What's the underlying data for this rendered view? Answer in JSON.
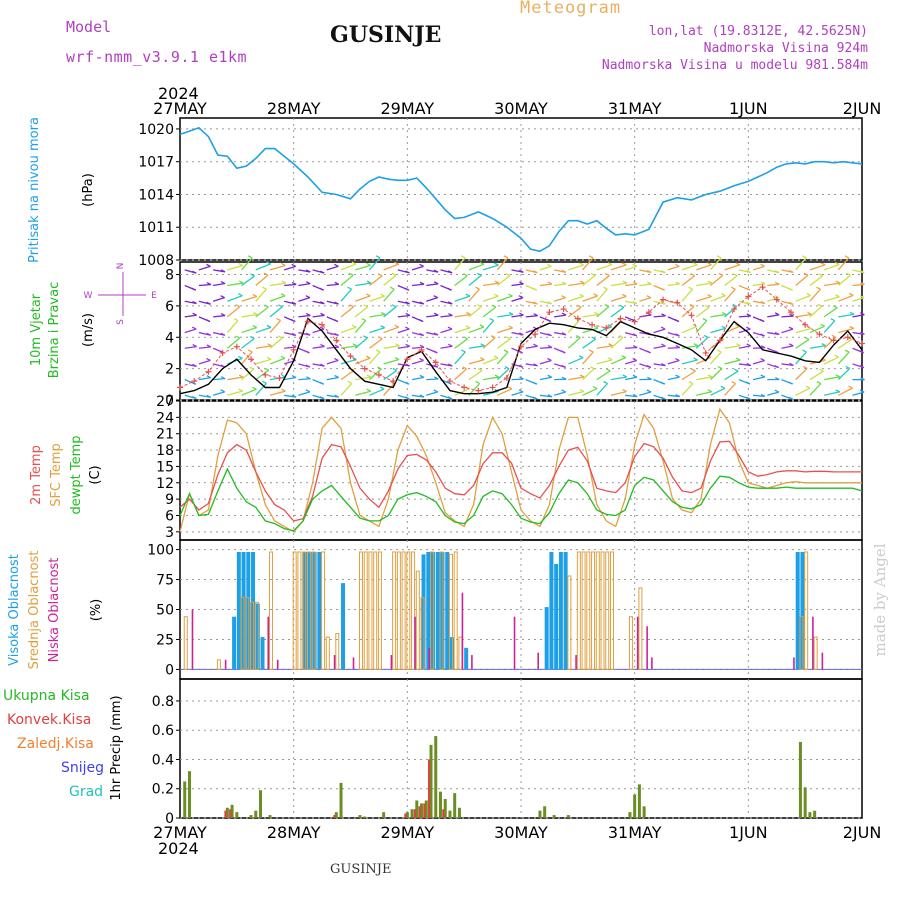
{
  "header": {
    "model_label": "Model",
    "model_name": "wrf-nmm_v3.9.1 e1km",
    "station": "GUSINJE",
    "product": "Meteogram",
    "coords": "lon,lat (19.8312E, 42.5625N)",
    "elevation": "Nadmorska Visina 924m",
    "model_elevation": "Nadmorska Visina u modelu 981.584m",
    "footer_station": "GUSINJE",
    "watermark": "made by Angel"
  },
  "colors": {
    "pressure": "#1ea0e6",
    "wind_label": "#22bb22",
    "temp2m": "#e85050",
    "sfc": "#e0a040",
    "dewpt": "#22bb22",
    "cloud_high": "#1ea0e6",
    "cloud_mid": "#e0a040",
    "cloud_low": "#cc2299",
    "rain_total": "#6b8e23",
    "purple": "#b040c0"
  },
  "chart_data": {
    "type": "line",
    "x_axis": {
      "year": "2024",
      "ticks": [
        "27MAY",
        "28MAY",
        "29MAY",
        "30MAY",
        "31MAY",
        "1JUN",
        "2JUN"
      ],
      "hours": 144,
      "grid": true
    },
    "pressure": {
      "ylabel": "Pritisak na nivou mora",
      "unit": "(hPa)",
      "ylim": [
        1008,
        1021
      ],
      "yticks": [
        1008,
        1011,
        1014,
        1017,
        1020
      ],
      "x": [
        0,
        2,
        4,
        6,
        8,
        10,
        12,
        14,
        16,
        18,
        20,
        22,
        24,
        27,
        30,
        33,
        36,
        38,
        40,
        42,
        44,
        46,
        48,
        50,
        52,
        54,
        56,
        58,
        60,
        63,
        66,
        69,
        72,
        74,
        76,
        78,
        80,
        82,
        84,
        86,
        88,
        90,
        92,
        94,
        96,
        99,
        102,
        105,
        108,
        111,
        114,
        117,
        120,
        122,
        124,
        126,
        128,
        130,
        132,
        134,
        136,
        138,
        140,
        142,
        144
      ],
      "values": [
        1019.5,
        1019.8,
        1020.1,
        1019.3,
        1017.6,
        1017.5,
        1016.4,
        1016.6,
        1017.3,
        1018.2,
        1018.2,
        1017.5,
        1016.8,
        1015.6,
        1014.2,
        1014.0,
        1013.6,
        1014.5,
        1015.2,
        1015.6,
        1015.4,
        1015.3,
        1015.3,
        1015.5,
        1014.6,
        1013.6,
        1012.6,
        1011.8,
        1011.9,
        1012.4,
        1011.8,
        1011.0,
        1010.0,
        1009.0,
        1008.8,
        1009.3,
        1010.6,
        1011.6,
        1011.6,
        1011.3,
        1011.6,
        1010.9,
        1010.3,
        1010.4,
        1010.3,
        1010.8,
        1013.3,
        1013.7,
        1013.5,
        1014.0,
        1014.3,
        1014.8,
        1015.2,
        1015.6,
        1016.0,
        1016.5,
        1016.8,
        1016.9,
        1016.8,
        1017.0,
        1017.0,
        1016.9,
        1017.0,
        1016.9,
        1016.8
      ]
    },
    "wind": {
      "ylabel_1": "10m Vjetar",
      "ylabel_2": "Brzina i Pravac",
      "unit": "(m/s)",
      "compass_top": "N",
      "compass_left": "W",
      "compass_right": "E",
      "compass_bottom": "S",
      "ylim": [
        0,
        8.8
      ],
      "yticks": [
        0,
        2,
        4,
        6,
        8
      ],
      "x": [
        0,
        3,
        6,
        9,
        12,
        15,
        18,
        21,
        24,
        27,
        30,
        33,
        36,
        39,
        42,
        45,
        48,
        51,
        54,
        57,
        60,
        63,
        66,
        69,
        72,
        75,
        78,
        81,
        84,
        87,
        90,
        93,
        96,
        99,
        102,
        105,
        108,
        111,
        114,
        117,
        120,
        123,
        126,
        129,
        132,
        135,
        138,
        141,
        144
      ],
      "speed": [
        0.4,
        0.6,
        1.0,
        2.0,
        2.6,
        1.6,
        0.8,
        0.8,
        2.5,
        5.2,
        4.4,
        3.2,
        2.0,
        1.2,
        1.0,
        0.8,
        2.7,
        3.1,
        1.8,
        0.6,
        0.4,
        0.4,
        0.5,
        0.8,
        3.6,
        4.5,
        4.9,
        4.8,
        4.6,
        4.5,
        4.1,
        5.0,
        4.6,
        4.2,
        4.0,
        3.6,
        3.2,
        2.5,
        3.8,
        5.0,
        4.3,
        3.2,
        3.0,
        2.8,
        2.5,
        2.4,
        3.5,
        4.4,
        3.2
      ],
      "gust": [
        0.8,
        1.2,
        1.8,
        3.0,
        3.4,
        2.6,
        1.6,
        1.4,
        3.2,
        5.0,
        4.8,
        3.8,
        2.8,
        2.0,
        1.6,
        1.2,
        2.6,
        3.2,
        2.4,
        1.2,
        0.8,
        0.6,
        0.8,
        1.4,
        3.4,
        4.2,
        5.6,
        5.8,
        5.2,
        4.8,
        4.6,
        5.2,
        5.0,
        5.6,
        6.4,
        6.2,
        5.4,
        3.0,
        3.8,
        5.8,
        6.6,
        7.2,
        6.4,
        5.6,
        4.8,
        4.2,
        3.8,
        4.0,
        3.6
      ]
    },
    "temperature": {
      "ylabel_2m": "2m Temp",
      "ylabel_sfc": "SFC Temp",
      "ylabel_dewpt": "dewpt Temp",
      "unit": "(C)",
      "ylim": [
        1.5,
        27
      ],
      "yticks": [
        3,
        6,
        9,
        12,
        15,
        18,
        21,
        24,
        27
      ],
      "x": [
        0,
        2,
        4,
        6,
        8,
        10,
        12,
        14,
        16,
        18,
        20,
        22,
        24,
        26,
        28,
        30,
        32,
        34,
        36,
        38,
        40,
        42,
        44,
        46,
        48,
        50,
        52,
        54,
        56,
        58,
        60,
        62,
        64,
        66,
        68,
        70,
        72,
        74,
        76,
        78,
        80,
        82,
        84,
        86,
        88,
        90,
        92,
        94,
        96,
        98,
        100,
        102,
        104,
        106,
        108,
        110,
        112,
        114,
        116,
        118,
        120,
        122,
        124,
        126,
        128,
        130,
        132,
        134,
        136,
        138,
        140,
        142,
        144
      ],
      "t2m": [
        7.5,
        9.0,
        7.0,
        8.2,
        13.5,
        17.5,
        19.0,
        18.0,
        14.0,
        10.5,
        8.0,
        7.0,
        5.0,
        5.4,
        9.5,
        16.5,
        19.0,
        18.6,
        15.0,
        11.0,
        9.0,
        7.5,
        10.5,
        14.5,
        17.0,
        17.2,
        16.2,
        14.0,
        11.0,
        10.0,
        9.8,
        11.5,
        15.5,
        17.5,
        17.5,
        15.6,
        11.0,
        10.0,
        9.2,
        11.5,
        15.0,
        18.0,
        18.5,
        16.0,
        11.0,
        10.5,
        10.2,
        12.0,
        16.8,
        19.2,
        18.6,
        16.5,
        13.0,
        10.5,
        10.2,
        11.0,
        16.0,
        19.5,
        19.6,
        17.0,
        14.0,
        13.2,
        13.5,
        14.0,
        14.2,
        14.2,
        14.0,
        14.1,
        14.1,
        14.0,
        14.0,
        14.0,
        14.0
      ],
      "sfc": [
        3.0,
        10.0,
        6.0,
        7.0,
        17.0,
        23.5,
        23.0,
        21.0,
        14.0,
        8.0,
        5.0,
        4.0,
        3.0,
        5.0,
        12.0,
        22.0,
        24.0,
        22.0,
        12.0,
        6.0,
        5.0,
        4.0,
        9.0,
        18.0,
        22.5,
        20.5,
        17.0,
        12.0,
        6.5,
        5.0,
        4.0,
        8.0,
        19.0,
        24.0,
        21.0,
        14.0,
        7.0,
        5.0,
        4.0,
        8.0,
        18.0,
        24.0,
        24.0,
        17.0,
        8.0,
        5.0,
        4.0,
        9.0,
        19.0,
        24.5,
        22.0,
        16.0,
        9.0,
        7.0,
        6.5,
        9.0,
        19.0,
        25.5,
        23.0,
        16.0,
        12.0,
        11.5,
        11.0,
        11.5,
        12.0,
        12.2,
        12.0,
        12.0,
        12.0,
        12.0,
        12.0,
        12.0,
        12.0
      ],
      "dewpt": [
        6.0,
        10.0,
        6.0,
        6.2,
        10.5,
        14.5,
        11.0,
        8.5,
        7.5,
        5.0,
        4.5,
        3.6,
        3.2,
        5.0,
        9.0,
        10.5,
        11.5,
        9.5,
        7.5,
        5.5,
        5.0,
        5.0,
        6.0,
        9.0,
        9.8,
        10.2,
        9.5,
        8.5,
        6.0,
        4.8,
        4.5,
        6.0,
        9.5,
        10.5,
        10.0,
        8.0,
        5.5,
        4.8,
        4.5,
        6.5,
        10.0,
        12.5,
        12.0,
        10.0,
        7.0,
        6.2,
        6.0,
        7.0,
        11.5,
        13.0,
        12.5,
        10.5,
        8.5,
        7.5,
        7.2,
        8.0,
        11.0,
        13.2,
        13.0,
        12.0,
        11.2,
        11.0,
        11.0,
        11.0,
        11.2,
        11.0,
        11.0,
        11.0,
        11.0,
        11.0,
        11.0,
        11.0,
        10.5
      ]
    },
    "clouds": {
      "ylabel_high": "Visoka Oblacnost",
      "ylabel_mid": "Srednja Oblacnost",
      "ylabel_low": "Niska Oblacnost",
      "unit": "(%)",
      "ylim": [
        0,
        100
      ],
      "yticks": [
        0,
        25,
        50,
        75,
        100
      ],
      "high": [
        {
          "h": 11,
          "v": 44
        },
        {
          "h": 12,
          "v": 98
        },
        {
          "h": 13,
          "v": 98
        },
        {
          "h": 14,
          "v": 98
        },
        {
          "h": 15,
          "v": 98
        },
        {
          "h": 16,
          "v": 55
        },
        {
          "h": 17,
          "v": 27
        },
        {
          "h": 26,
          "v": 98
        },
        {
          "h": 27,
          "v": 98
        },
        {
          "h": 28,
          "v": 98
        },
        {
          "h": 29,
          "v": 98
        },
        {
          "h": 34,
          "v": 72
        },
        {
          "h": 51,
          "v": 96
        },
        {
          "h": 52,
          "v": 98
        },
        {
          "h": 53,
          "v": 98
        },
        {
          "h": 54,
          "v": 98
        },
        {
          "h": 55,
          "v": 98
        },
        {
          "h": 56,
          "v": 98
        },
        {
          "h": 57,
          "v": 27
        },
        {
          "h": 60,
          "v": 18
        },
        {
          "h": 77,
          "v": 52
        },
        {
          "h": 78,
          "v": 98
        },
        {
          "h": 79,
          "v": 88
        },
        {
          "h": 80,
          "v": 98
        },
        {
          "h": 81,
          "v": 98
        },
        {
          "h": 130,
          "v": 98
        },
        {
          "h": 131,
          "v": 98
        }
      ],
      "mid": [
        {
          "h": 1,
          "v": 44
        },
        {
          "h": 8,
          "v": 8
        },
        {
          "h": 13,
          "v": 60
        },
        {
          "h": 14,
          "v": 60
        },
        {
          "h": 15,
          "v": 56
        },
        {
          "h": 16,
          "v": 56
        },
        {
          "h": 19,
          "v": 98
        },
        {
          "h": 24,
          "v": 98
        },
        {
          "h": 25,
          "v": 98
        },
        {
          "h": 26,
          "v": 98
        },
        {
          "h": 27,
          "v": 98
        },
        {
          "h": 28,
          "v": 98
        },
        {
          "h": 30,
          "v": 98
        },
        {
          "h": 31,
          "v": 27
        },
        {
          "h": 33,
          "v": 30
        },
        {
          "h": 38,
          "v": 98
        },
        {
          "h": 39,
          "v": 98
        },
        {
          "h": 40,
          "v": 98
        },
        {
          "h": 41,
          "v": 98
        },
        {
          "h": 42,
          "v": 98
        },
        {
          "h": 45,
          "v": 98
        },
        {
          "h": 46,
          "v": 98
        },
        {
          "h": 47,
          "v": 98
        },
        {
          "h": 48,
          "v": 98
        },
        {
          "h": 49,
          "v": 98
        },
        {
          "h": 50,
          "v": 82
        },
        {
          "h": 51,
          "v": 60
        },
        {
          "h": 53,
          "v": 98
        },
        {
          "h": 55,
          "v": 98
        },
        {
          "h": 57,
          "v": 96
        },
        {
          "h": 58,
          "v": 98
        },
        {
          "h": 59,
          "v": 27
        },
        {
          "h": 82,
          "v": 78
        },
        {
          "h": 84,
          "v": 98
        },
        {
          "h": 85,
          "v": 98
        },
        {
          "h": 86,
          "v": 98
        },
        {
          "h": 87,
          "v": 98
        },
        {
          "h": 88,
          "v": 98
        },
        {
          "h": 89,
          "v": 98
        },
        {
          "h": 90,
          "v": 98
        },
        {
          "h": 91,
          "v": 98
        },
        {
          "h": 95,
          "v": 44
        },
        {
          "h": 97,
          "v": 68
        },
        {
          "h": 131,
          "v": 44
        },
        {
          "h": 132,
          "v": 98
        },
        {
          "h": 134,
          "v": 27
        }
      ],
      "low": [
        {
          "h": 2,
          "v": 50
        },
        {
          "h": 9,
          "v": 8
        },
        {
          "h": 18,
          "v": 44
        },
        {
          "h": 20,
          "v": 8
        },
        {
          "h": 32,
          "v": 12
        },
        {
          "h": 36,
          "v": 10
        },
        {
          "h": 44,
          "v": 12
        },
        {
          "h": 49,
          "v": 44
        },
        {
          "h": 52,
          "v": 18
        },
        {
          "h": 59,
          "v": 64
        },
        {
          "h": 61,
          "v": 12
        },
        {
          "h": 70,
          "v": 44
        },
        {
          "h": 75,
          "v": 14
        },
        {
          "h": 83,
          "v": 12
        },
        {
          "h": 96,
          "v": 44
        },
        {
          "h": 98,
          "v": 36
        },
        {
          "h": 99,
          "v": 10
        },
        {
          "h": 129,
          "v": 10
        },
        {
          "h": 133,
          "v": 44
        },
        {
          "h": 135,
          "v": 14
        }
      ]
    },
    "precip": {
      "legend": [
        "Ukupna Kisa",
        "Konvek.Kisa",
        "Zaledj.Kisa",
        "Snijeg",
        "Grad"
      ],
      "ylabel": "1hr Precip (mm)",
      "ylim": [
        0,
        0.95
      ],
      "yticks": [
        0,
        0.2,
        0.4,
        0.6,
        0.8
      ],
      "total": [
        {
          "h": 1,
          "v": 0.25
        },
        {
          "h": 2,
          "v": 0.32
        },
        {
          "h": 10,
          "v": 0.07
        },
        {
          "h": 11,
          "v": 0.09
        },
        {
          "h": 12,
          "v": 0.04
        },
        {
          "h": 15,
          "v": 0.02
        },
        {
          "h": 16,
          "v": 0.05
        },
        {
          "h": 17,
          "v": 0.19
        },
        {
          "h": 19,
          "v": 0.02
        },
        {
          "h": 33,
          "v": 0.04
        },
        {
          "h": 34,
          "v": 0.24
        },
        {
          "h": 38,
          "v": 0.02
        },
        {
          "h": 39,
          "v": 0.01
        },
        {
          "h": 43,
          "v": 0.04
        },
        {
          "h": 48,
          "v": 0.04
        },
        {
          "h": 49,
          "v": 0.06
        },
        {
          "h": 50,
          "v": 0.12
        },
        {
          "h": 51,
          "v": 0.1
        },
        {
          "h": 52,
          "v": 0.12
        },
        {
          "h": 53,
          "v": 0.5
        },
        {
          "h": 54,
          "v": 0.56
        },
        {
          "h": 55,
          "v": 0.18
        },
        {
          "h": 56,
          "v": 0.13
        },
        {
          "h": 57,
          "v": 0.05
        },
        {
          "h": 58,
          "v": 0.17
        },
        {
          "h": 59,
          "v": 0.07
        },
        {
          "h": 76,
          "v": 0.05
        },
        {
          "h": 77,
          "v": 0.08
        },
        {
          "h": 79,
          "v": 0.02
        },
        {
          "h": 82,
          "v": 0.02
        },
        {
          "h": 95,
          "v": 0.04
        },
        {
          "h": 96,
          "v": 0.16
        },
        {
          "h": 97,
          "v": 0.23
        },
        {
          "h": 98,
          "v": 0.08
        },
        {
          "h": 131,
          "v": 0.52
        },
        {
          "h": 132,
          "v": 0.21
        },
        {
          "h": 133,
          "v": 0.04
        },
        {
          "h": 134,
          "v": 0.05
        }
      ],
      "convective": [
        {
          "h": 10,
          "v": 0.05
        },
        {
          "h": 11,
          "v": 0.06
        },
        {
          "h": 33,
          "v": 0.02
        },
        {
          "h": 48,
          "v": 0.03
        },
        {
          "h": 50,
          "v": 0.06
        },
        {
          "h": 51,
          "v": 0.08
        },
        {
          "h": 52,
          "v": 0.1
        },
        {
          "h": 53,
          "v": 0.4
        },
        {
          "h": 56,
          "v": 0.06
        }
      ]
    }
  }
}
